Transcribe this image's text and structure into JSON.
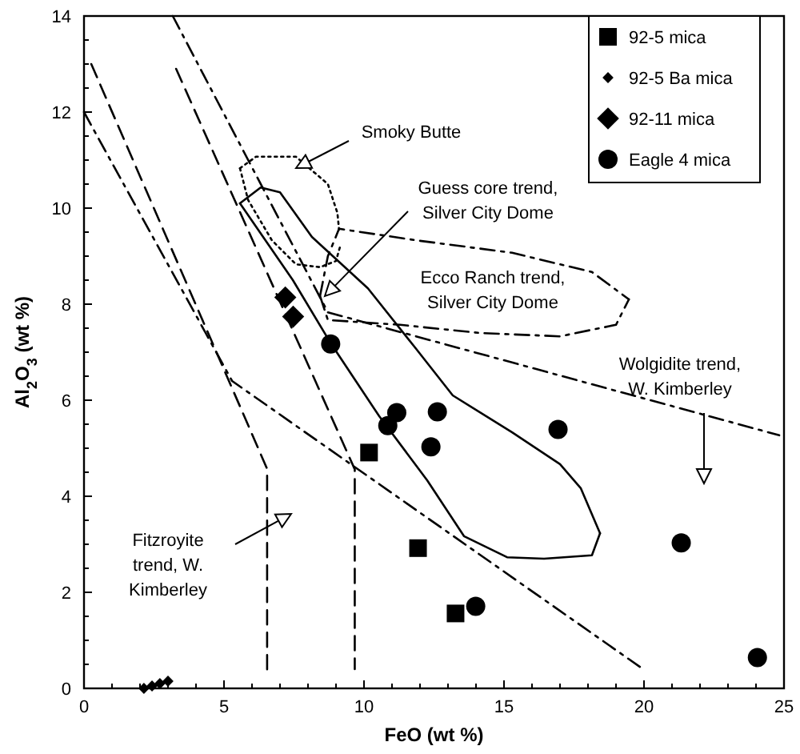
{
  "chart_data": {
    "type": "scatter",
    "xlabel": "FeO (wt %)",
    "ylabel": "Al$_{2}$O$_{3}$ (wt %)",
    "xlim": [
      0,
      25
    ],
    "ylim": [
      0,
      14
    ],
    "xticks": [
      0,
      {
        "value": 1,
        "label": null
      },
      {
        "value": 2,
        "label": null
      },
      {
        "value": 3,
        "label": null
      },
      {
        "value": 4,
        "label": null
      },
      5,
      {
        "value": 6,
        "label": null
      },
      {
        "value": 7,
        "label": null
      },
      {
        "value": 8,
        "label": null
      },
      {
        "value": 9,
        "label": null
      },
      10,
      {
        "value": 11,
        "label": null
      },
      {
        "value": 12,
        "label": null
      },
      {
        "value": 13,
        "label": null
      },
      {
        "value": 14,
        "label": null
      },
      15,
      {
        "value": 16,
        "label": null
      },
      {
        "value": 17,
        "label": null
      },
      {
        "value": 18,
        "label": null
      },
      {
        "value": 19,
        "label": null
      },
      20,
      {
        "value": 21,
        "label": null
      },
      {
        "value": 22,
        "label": null
      },
      {
        "value": 23,
        "label": null
      },
      {
        "value": 24,
        "label": null
      },
      25
    ],
    "yticks": [
      0,
      {
        "value": 0.5,
        "label": null
      },
      {
        "value": 1,
        "label": null
      },
      {
        "value": 1.5,
        "label": null
      },
      2,
      {
        "value": 2.5,
        "label": null
      },
      {
        "value": 3,
        "label": null
      },
      {
        "value": 3.5,
        "label": null
      },
      4,
      {
        "value": 4.5,
        "label": null
      },
      {
        "value": 5,
        "label": null
      },
      {
        "value": 5.5,
        "label": null
      },
      6,
      {
        "value": 6.5,
        "label": null
      },
      {
        "value": 7,
        "label": null
      },
      {
        "value": 7.5,
        "label": null
      },
      8,
      {
        "value": 8.5,
        "label": null
      },
      {
        "value": 9,
        "label": null
      },
      {
        "value": 9.5,
        "label": null
      },
      10,
      {
        "value": 10.5,
        "label": null
      },
      {
        "value": 11,
        "label": null
      },
      {
        "value": 11.5,
        "label": null
      },
      12,
      {
        "value": 12.5,
        "label": null
      },
      {
        "value": 13,
        "label": null
      },
      {
        "value": 13.5,
        "label": null
      },
      14
    ],
    "legend": "top right",
    "grid": false,
    "series": [
      {
        "type": "line",
        "color": "#000000",
        "line_style": "dotted",
        "marker": "none",
        "x": [
          5.57,
          6.14,
          7.57,
          8.71,
          9.05,
          9.11
        ],
        "values": [
          10.83,
          11.07,
          11.07,
          10.5,
          9.9,
          9.55
        ]
      },
      {
        "type": "line",
        "color": "#000000",
        "line_style": "dotted",
        "marker": "none",
        "x": [
          5.57,
          5.86,
          6.71,
          7.57,
          8.43,
          9.0,
          9.17
        ],
        "values": [
          10.83,
          10.17,
          9.33,
          8.83,
          8.77,
          8.9,
          9.25
        ]
      },
      {
        "type": "line",
        "color": "#000000",
        "line_style": "solid",
        "marker": "none",
        "x": [
          5.57,
          6.31,
          7.0,
          8.14,
          10.14,
          11.86,
          13.17,
          15.29,
          17.0,
          17.74,
          18.43
        ],
        "values": [
          10.1,
          10.43,
          10.33,
          9.4,
          8.33,
          7.07,
          6.1,
          5.33,
          4.67,
          4.17,
          3.23
        ]
      },
      {
        "type": "line",
        "color": "#000000",
        "line_style": "solid",
        "marker": "none",
        "x": [
          5.57,
          7.46,
          8.83,
          10.54,
          12.26,
          13.57,
          15.11,
          16.43,
          18.14,
          18.43
        ],
        "values": [
          10.1,
          8.5,
          7.17,
          5.67,
          4.33,
          3.17,
          2.73,
          2.7,
          2.77,
          3.23
        ]
      },
      {
        "type": "line",
        "color": "#000000",
        "line_style": "dashdot",
        "marker": "none",
        "x": [
          8.43,
          8.71,
          9.11,
          11.86,
          15.29,
          18.14,
          19.46
        ],
        "values": [
          8.17,
          9.0,
          9.57,
          9.33,
          9.07,
          8.67,
          8.1
        ]
      },
      {
        "type": "line",
        "color": "#000000",
        "line_style": "dashdot",
        "marker": "none",
        "x": [
          8.43,
          8.71,
          11.29,
          14.14,
          17.0,
          19.0,
          19.46
        ],
        "values": [
          8.17,
          7.67,
          7.57,
          7.4,
          7.33,
          7.57,
          8.1
        ]
      },
      {
        "type": "line",
        "color": "#000000",
        "line_style": "dashdot",
        "marker": "none",
        "x": [
          3.17,
          8.71,
          24.83
        ],
        "values": [
          14.0,
          7.83,
          5.27
        ]
      },
      {
        "type": "line",
        "color": "#000000",
        "line_style": "dashdot",
        "marker": "none",
        "x": [
          0,
          5.29,
          19.97
        ],
        "values": [
          12.0,
          6.4,
          0.4
        ]
      },
      {
        "type": "line",
        "color": "#000000",
        "line_style": "dashed",
        "marker": "none",
        "x": [
          0.26,
          6.54,
          6.54
        ],
        "values": [
          13.0,
          4.57,
          0.33
        ]
      },
      {
        "type": "line",
        "color": "#000000",
        "line_style": "dashed",
        "marker": "none",
        "x": [
          3.29,
          9.67,
          9.67
        ],
        "values": [
          12.9,
          4.56,
          0.4
        ]
      },
      {
        "name": "92-5 mica",
        "color": "#000000",
        "marker": "square",
        "x": [
          10.18,
          11.93,
          13.27
        ],
        "values": [
          4.91,
          2.92,
          1.56
        ]
      },
      {
        "name": "92-5 Ba mica",
        "color": "#000000",
        "marker": "diamond",
        "x": [
          2.14,
          2.43,
          2.71,
          3.0
        ],
        "values": [
          0,
          0.05,
          0.1,
          0.15
        ]
      },
      {
        "name": "92-11 mica",
        "color": "#000000",
        "marker": "diamond",
        "x": [
          7.19,
          7.47
        ],
        "values": [
          8.14,
          7.74
        ]
      },
      {
        "name": "Eagle 4 mica",
        "color": "#000000",
        "marker": "circle",
        "x": [
          8.81,
          11.17,
          10.85,
          12.62,
          12.39,
          16.93,
          21.33,
          13.99,
          24.05
        ],
        "values": [
          7.17,
          5.74,
          5.47,
          5.76,
          5.03,
          5.39,
          3.03,
          1.71,
          0.64
        ]
      }
    ],
    "annotations": [
      "Smoky Butte",
      "Guess core trend,\nSilver City Dome",
      "Ecco Ranch trend,\nSilver City Dome",
      "Wolgidite trend,\nW. Kimberley",
      "Fitzroyite\ntrend, W.\nKimberley"
    ]
  }
}
